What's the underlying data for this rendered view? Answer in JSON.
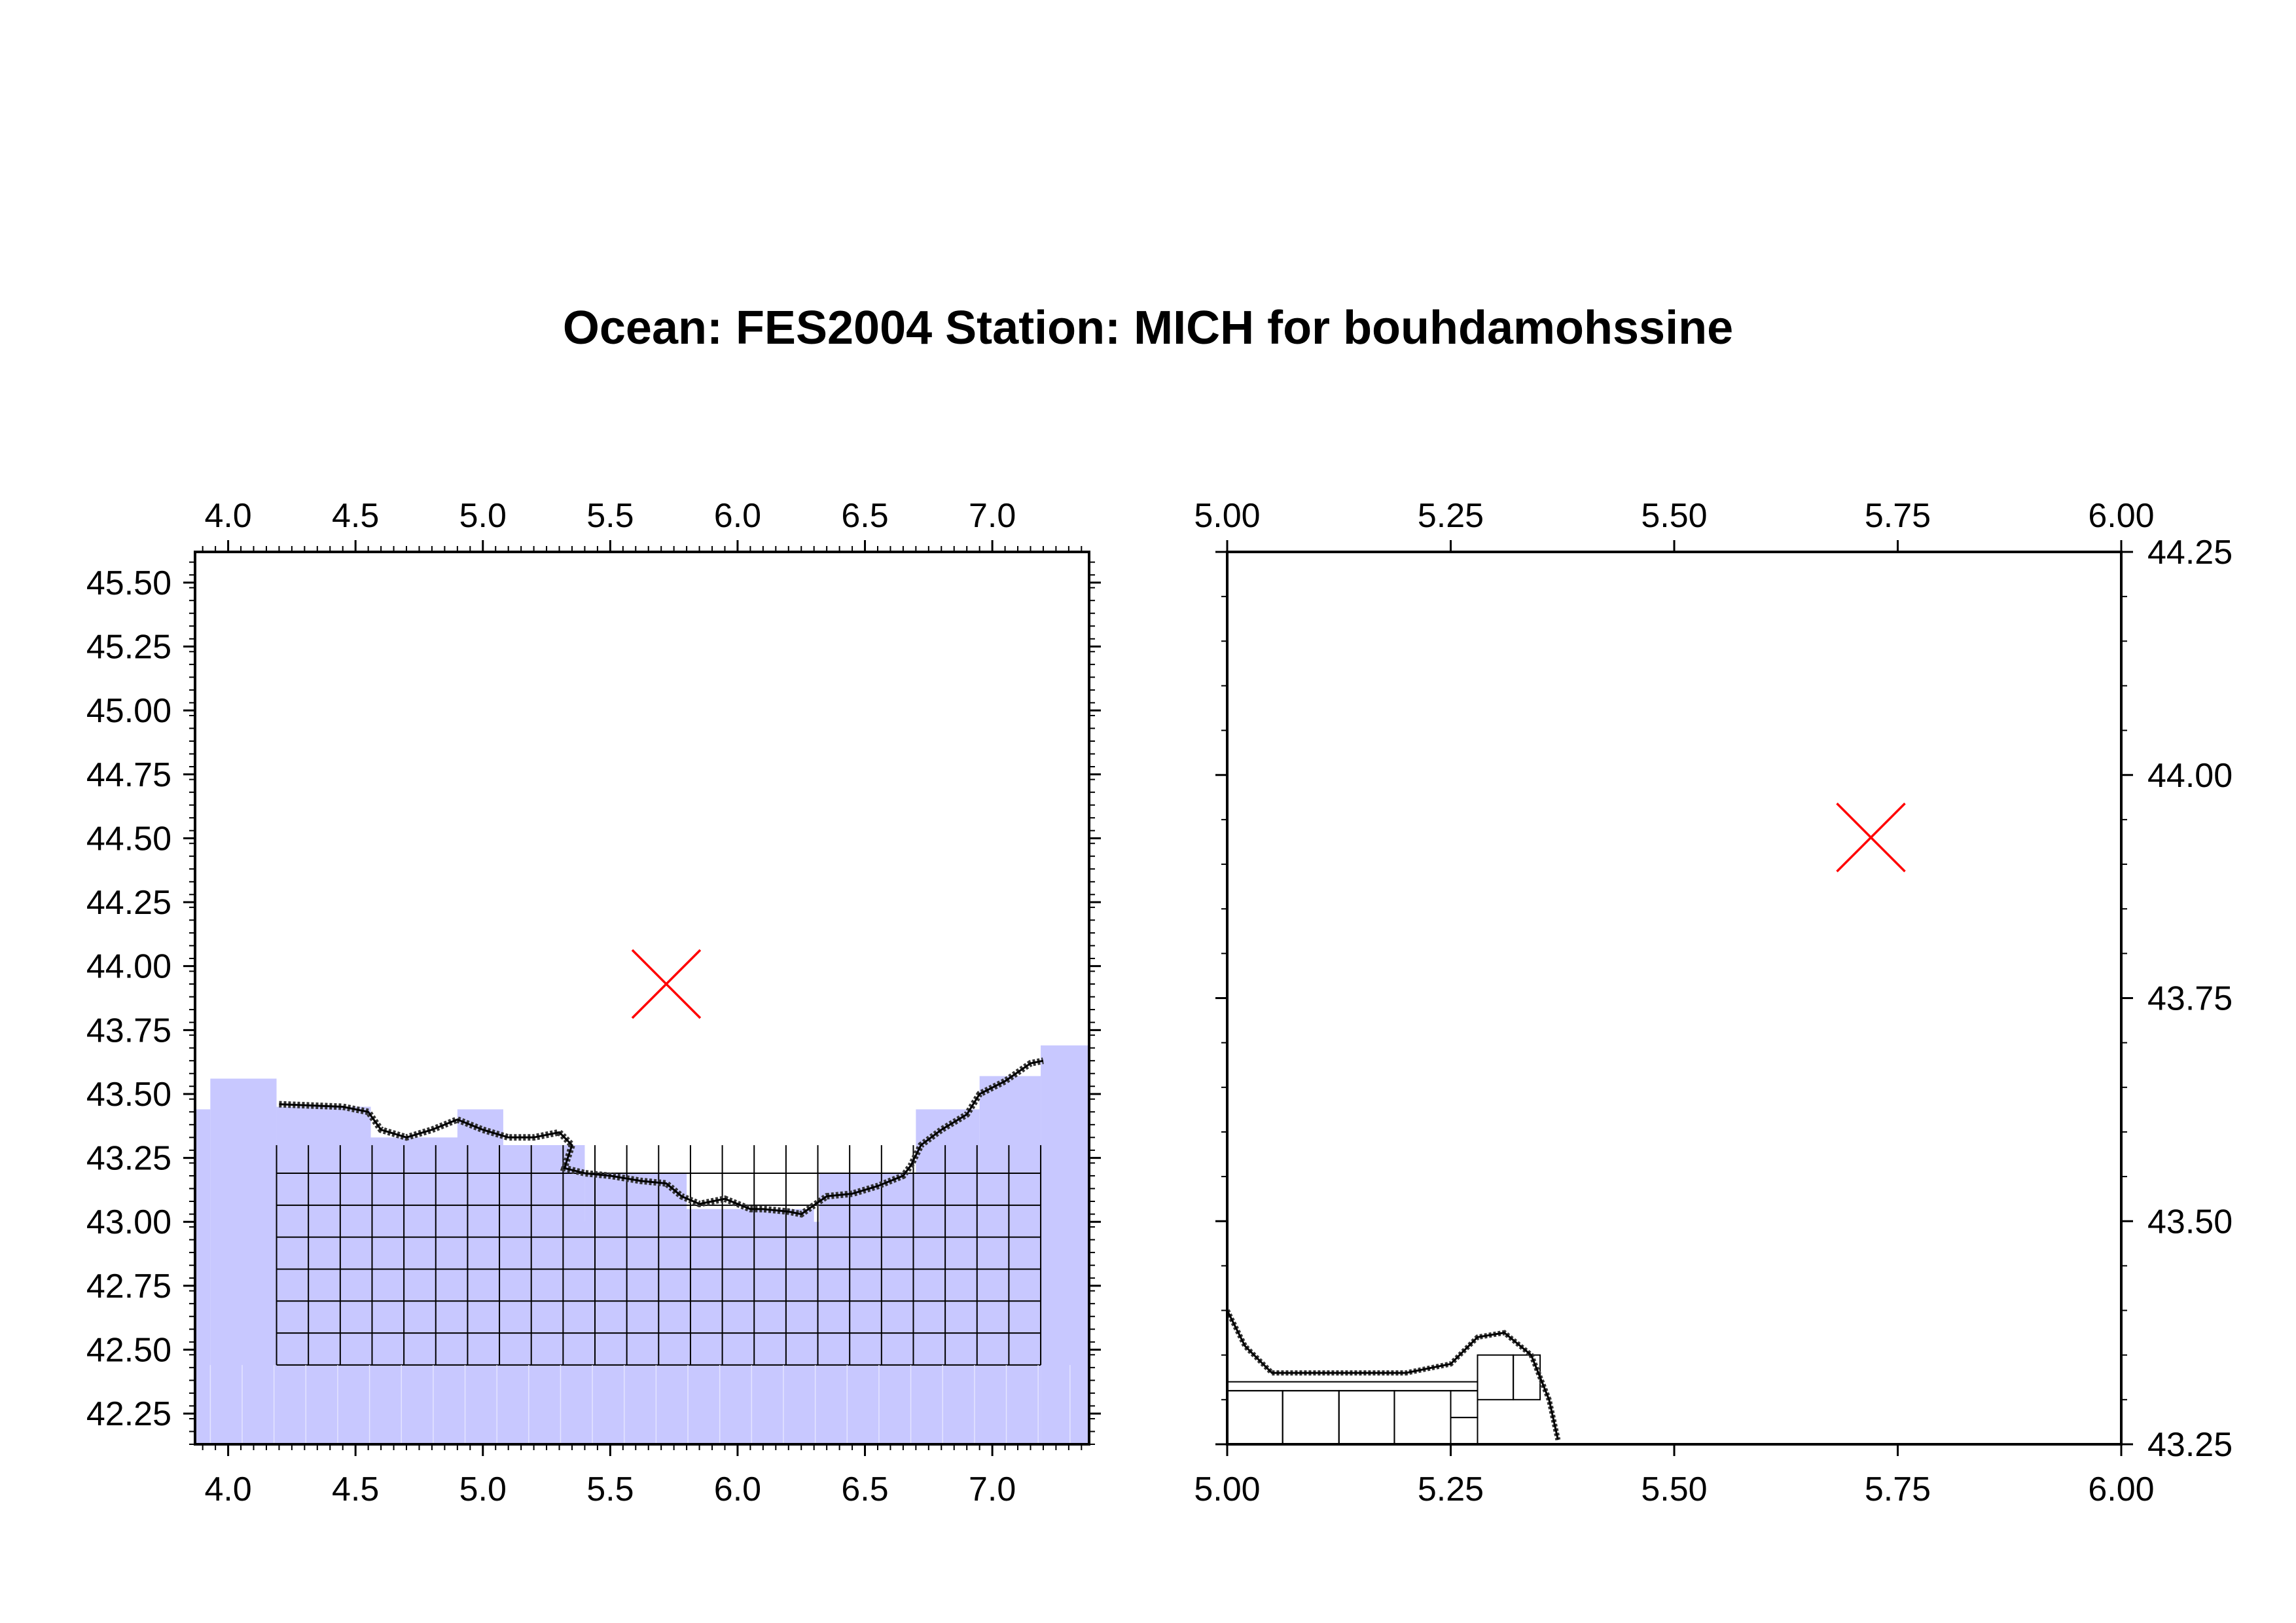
{
  "title": "Ocean: FES2004  Station: MICH  for bouhdamohssine",
  "colors": {
    "land": "#c8c8ff",
    "marker": "#ff0000",
    "grid": "#000000"
  },
  "chart_data": [
    {
      "type": "map",
      "name": "left-map",
      "xlim": [
        3.87,
        7.38
      ],
      "ylim": [
        42.13,
        45.62
      ],
      "xticks": [
        4.0,
        4.5,
        5.0,
        5.5,
        6.0,
        6.5,
        7.0
      ],
      "xtick_labels": [
        "4.0",
        "4.5",
        "5.0",
        "5.5",
        "6.0",
        "6.5",
        "7.0"
      ],
      "yticks": [
        42.25,
        42.5,
        42.75,
        43.0,
        43.25,
        43.5,
        43.75,
        44.0,
        44.25,
        44.5,
        44.75,
        45.0,
        45.25,
        45.5
      ],
      "ytick_labels": [
        "42.25",
        "42.50",
        "42.75",
        "43.00",
        "43.25",
        "43.50",
        "43.75",
        "44.00",
        "44.25",
        "44.50",
        "44.75",
        "45.00",
        "45.25",
        "45.50"
      ],
      "station": {
        "lon": 5.72,
        "lat": 43.93
      },
      "coastline": [
        [
          4.2,
          43.46
        ],
        [
          4.45,
          43.45
        ],
        [
          4.55,
          43.43
        ],
        [
          4.6,
          43.36
        ],
        [
          4.7,
          43.33
        ],
        [
          4.8,
          43.36
        ],
        [
          4.9,
          43.4
        ],
        [
          5.0,
          43.36
        ],
        [
          5.1,
          43.33
        ],
        [
          5.2,
          43.33
        ],
        [
          5.3,
          43.35
        ],
        [
          5.35,
          43.3
        ],
        [
          5.32,
          43.21
        ],
        [
          5.4,
          43.19
        ],
        [
          5.5,
          43.18
        ],
        [
          5.62,
          43.16
        ],
        [
          5.72,
          43.15
        ],
        [
          5.78,
          43.1
        ],
        [
          5.85,
          43.07
        ],
        [
          5.95,
          43.09
        ],
        [
          6.05,
          43.05
        ],
        [
          6.1,
          43.05
        ],
        [
          6.2,
          43.04
        ],
        [
          6.25,
          43.03
        ],
        [
          6.35,
          43.1
        ],
        [
          6.45,
          43.11
        ],
        [
          6.55,
          43.14
        ],
        [
          6.65,
          43.18
        ],
        [
          6.68,
          43.22
        ],
        [
          6.72,
          43.3
        ],
        [
          6.8,
          43.36
        ],
        [
          6.9,
          43.42
        ],
        [
          6.95,
          43.5
        ],
        [
          7.05,
          43.55
        ],
        [
          7.15,
          43.62
        ],
        [
          7.2,
          43.63
        ]
      ],
      "land_blocks": [
        [
          3.87,
          42.13,
          3.93,
          43.44
        ],
        [
          3.93,
          42.13,
          4.19,
          43.56
        ],
        [
          4.19,
          42.13,
          7.19,
          43.0
        ],
        [
          7.19,
          42.13,
          7.38,
          43.69
        ],
        [
          4.19,
          42.13,
          4.56,
          43.45
        ],
        [
          4.56,
          42.13,
          5.0,
          43.33
        ],
        [
          4.9,
          42.13,
          5.08,
          43.44
        ],
        [
          5.0,
          42.13,
          5.4,
          43.3
        ],
        [
          5.4,
          42.13,
          5.8,
          43.19
        ],
        [
          5.8,
          42.13,
          6.3,
          43.05
        ],
        [
          6.32,
          42.13,
          6.7,
          43.19
        ],
        [
          6.7,
          42.13,
          6.95,
          43.44
        ],
        [
          6.95,
          42.13,
          7.19,
          43.57
        ]
      ]
    },
    {
      "type": "map",
      "name": "right-map",
      "xlim": [
        5.0,
        6.0
      ],
      "ylim": [
        43.25,
        44.25
      ],
      "xticks": [
        5.0,
        5.25,
        5.5,
        5.75,
        6.0
      ],
      "xtick_labels": [
        "5.00",
        "5.25",
        "5.50",
        "5.75",
        "6.00"
      ],
      "yticks": [
        43.25,
        43.5,
        43.75,
        44.0,
        44.25
      ],
      "ytick_labels": [
        "43.25",
        "43.50",
        "43.75",
        "44.00",
        "44.25"
      ],
      "station": {
        "lon": 5.72,
        "lat": 43.93
      },
      "coastline": [
        [
          5.0,
          43.4
        ],
        [
          5.02,
          43.36
        ],
        [
          5.05,
          43.33
        ],
        [
          5.1,
          43.33
        ],
        [
          5.2,
          43.33
        ],
        [
          5.25,
          43.34
        ],
        [
          5.28,
          43.37
        ],
        [
          5.31,
          43.375
        ],
        [
          5.34,
          43.35
        ],
        [
          5.36,
          43.3
        ],
        [
          5.37,
          43.255
        ]
      ],
      "mesh_blocks": [
        [
          5.0,
          43.25,
          5.062,
          43.31
        ],
        [
          5.062,
          43.25,
          5.125,
          43.31
        ],
        [
          5.125,
          43.25,
          5.187,
          43.31
        ],
        [
          5.187,
          43.25,
          5.25,
          43.31
        ],
        [
          5.0,
          43.31,
          5.28,
          43.32
        ],
        [
          5.25,
          43.28,
          5.28,
          43.31
        ],
        [
          5.25,
          43.25,
          5.28,
          43.28
        ],
        [
          5.28,
          43.3,
          5.32,
          43.35
        ],
        [
          5.32,
          43.3,
          5.35,
          43.35
        ]
      ]
    }
  ]
}
